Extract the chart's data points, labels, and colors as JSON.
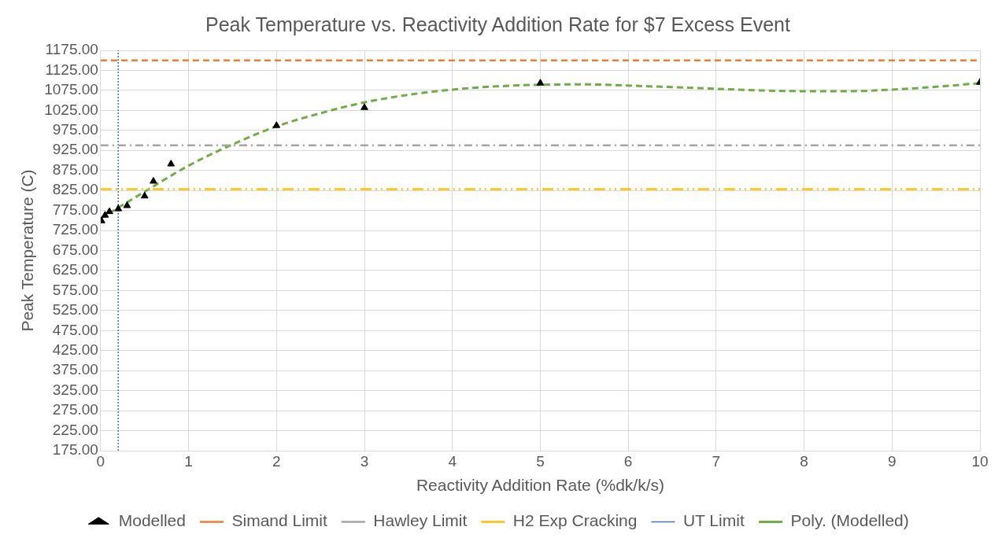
{
  "chart_data": {
    "type": "scatter",
    "title": "Peak Temperature vs. Reactivity Addition Rate for $7 Excess Event",
    "xlabel": "Reactivity Addition Rate (%dk/k/s)",
    "ylabel": "Peak Temperature (C)",
    "xlim": [
      0,
      10
    ],
    "xticks": [
      0,
      1,
      2,
      3,
      4,
      5,
      6,
      7,
      8,
      9,
      10
    ],
    "ylim": [
      175,
      1175
    ],
    "yticks": [
      {
        "value": 175,
        "label": "175.00"
      },
      {
        "value": 225,
        "label": "225.00"
      },
      {
        "value": 275,
        "label": "275.00"
      },
      {
        "value": 325,
        "label": "325.00"
      },
      {
        "value": 375,
        "label": "375.00"
      },
      {
        "value": 425,
        "label": "425.00"
      },
      {
        "value": 475,
        "label": "475.00"
      },
      {
        "value": 525,
        "label": "525.00"
      },
      {
        "value": 575,
        "label": "575.00"
      },
      {
        "value": 625,
        "label": "625.00"
      },
      {
        "value": 675,
        "label": "675.00"
      },
      {
        "value": 725,
        "label": "725.00"
      },
      {
        "value": 775,
        "label": "775.00"
      },
      {
        "value": 825,
        "label": "825.00"
      },
      {
        "value": 875,
        "label": "875.00"
      },
      {
        "value": 925,
        "label": "925.00"
      },
      {
        "value": 975,
        "label": "975.00"
      },
      {
        "value": 1025,
        "label": "1025.00"
      },
      {
        "value": 1075,
        "label": "1075.00"
      },
      {
        "value": 1125,
        "label": "1125.00"
      },
      {
        "value": 1175,
        "label": "1175.00"
      }
    ],
    "grid": true,
    "legend": "bottom",
    "series": [
      {
        "name": "Modelled",
        "marker": "triangle",
        "color": "#000000",
        "x": [
          0.01,
          0.05,
          0.1,
          0.2,
          0.3,
          0.5,
          0.6,
          0.8,
          2,
          3,
          5,
          10
        ],
        "values": [
          749,
          763,
          772,
          779,
          787,
          811,
          848,
          891,
          987,
          1032,
          1093,
          1095
        ]
      },
      {
        "name": "Poly. (Modelled)",
        "type": "line",
        "marker": "none",
        "line_style": "dashed",
        "color": "#70ad47",
        "x": [
          0,
          0.5,
          1,
          1.5,
          2,
          2.5,
          3,
          3.5,
          4,
          4.5,
          5,
          5.5,
          6,
          6.5,
          7,
          7.5,
          8,
          8.5,
          9,
          9.5,
          10
        ],
        "values": [
          755,
          822,
          887,
          940,
          985,
          1018,
          1045,
          1064,
          1077,
          1085,
          1089,
          1090,
          1087,
          1083,
          1079,
          1075,
          1073,
          1073,
          1077,
          1084,
          1093
        ]
      }
    ],
    "ref_lines": [
      {
        "axis": "y",
        "value": 1150,
        "label": "Simand Limit",
        "color": "#ed7d31",
        "line_style": "dashed"
      },
      {
        "axis": "y",
        "value": 938,
        "label": "Hawley Limit",
        "color": "#a5a5a5",
        "line_style": "dashdot"
      },
      {
        "axis": "y",
        "value": 828,
        "label": "H2 Exp Cracking",
        "color": "#ffc000",
        "line_style": "dashdotdot"
      },
      {
        "axis": "x",
        "value": 0.2,
        "label": "UT Limit",
        "color": "#4472c4",
        "line_style": "dotted"
      }
    ]
  }
}
